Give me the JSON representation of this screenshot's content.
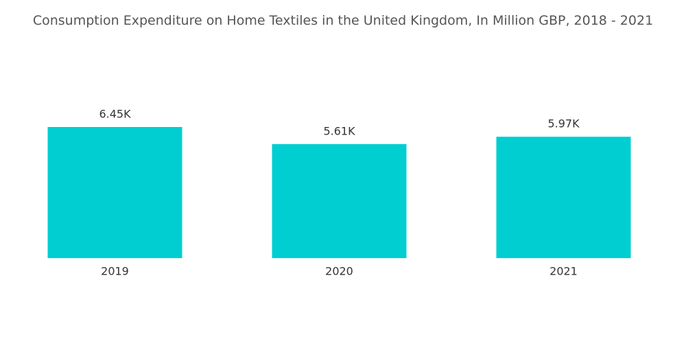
{
  "chart_data": {
    "type": "bar",
    "title": "Consumption Expenditure on Home Textiles in the United Kingdom, In Million GBP, 2018 - 2021",
    "categories": [
      "2019",
      "2020",
      "2021"
    ],
    "values": [
      6450,
      5610,
      5970
    ],
    "value_labels": [
      "6.45K",
      "5.61K",
      "5.97K"
    ],
    "color": "#00ced1"
  }
}
